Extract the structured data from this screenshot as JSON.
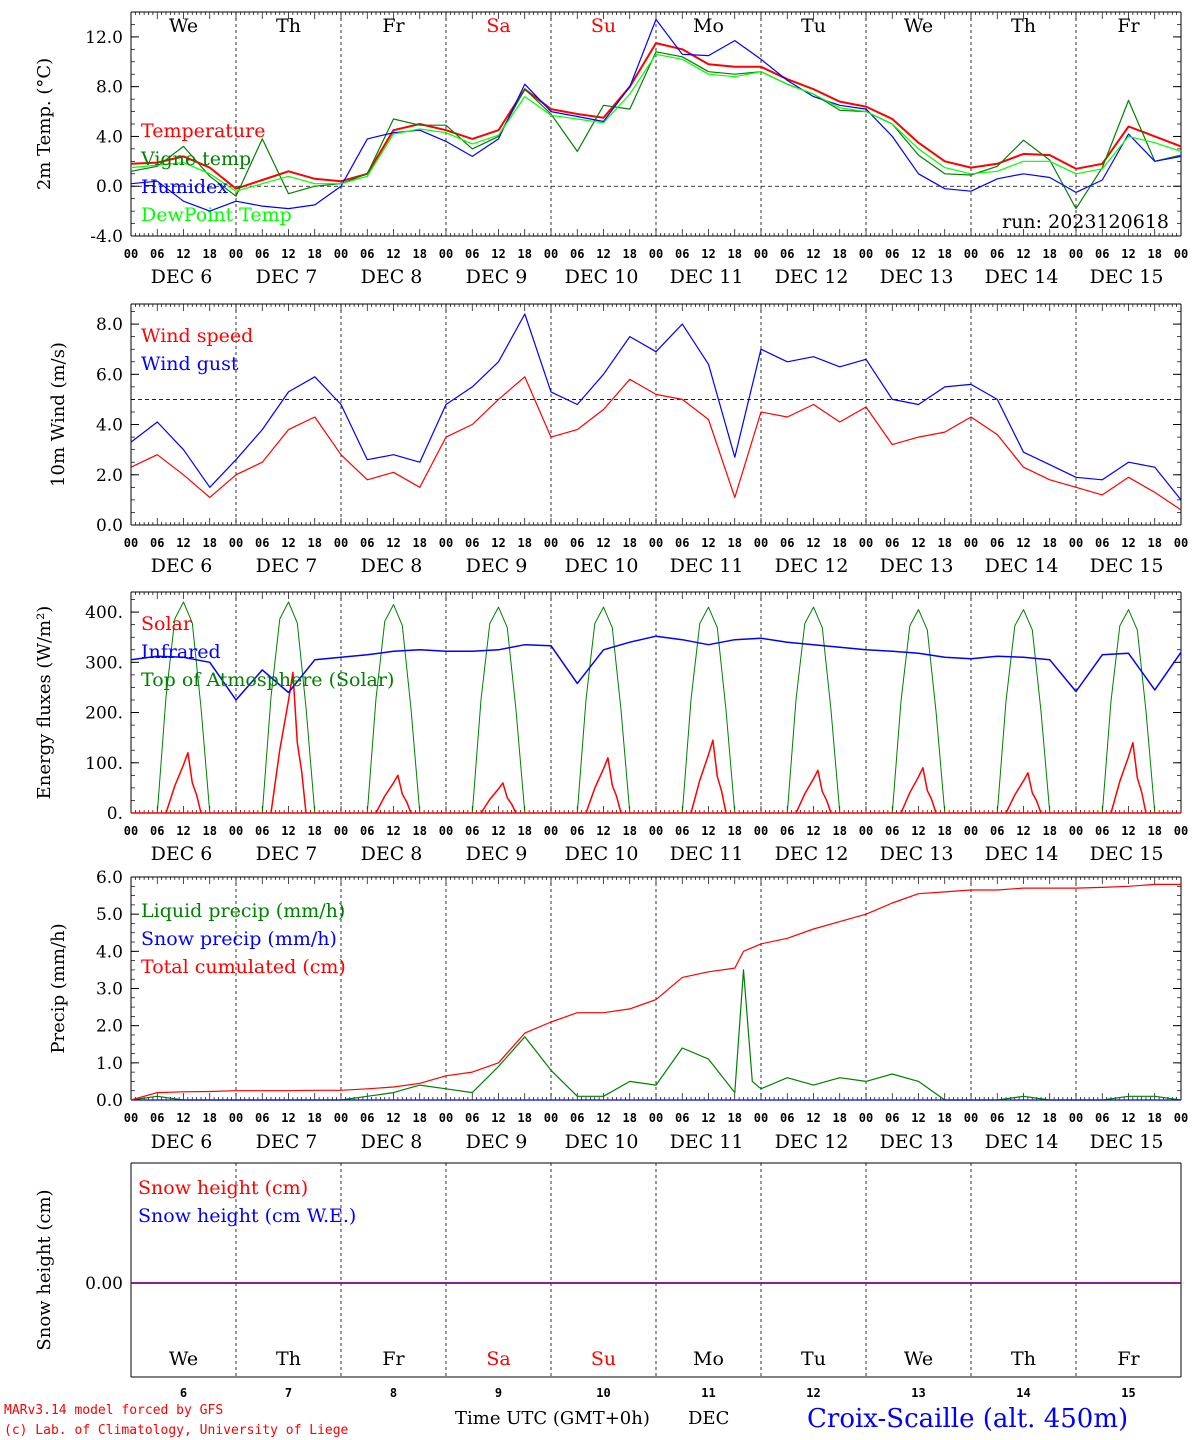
{
  "day_labels": [
    "We",
    "Th",
    "Fr",
    "Sa",
    "Su",
    "Mo",
    "Tu",
    "We",
    "Th",
    "Fr"
  ],
  "weekend_days": [
    "Sa",
    "Su"
  ],
  "date_labels": [
    "DEC  6",
    "DEC  7",
    "DEC  8",
    "DEC  9",
    "DEC 10",
    "DEC 11",
    "DEC 12",
    "DEC 13",
    "DEC 14",
    "DEC 15"
  ],
  "date_numbers": [
    "6",
    "7",
    "8",
    "9",
    "10",
    "11",
    "12",
    "13",
    "14",
    "15"
  ],
  "hour_labels": [
    "00",
    "06",
    "12",
    "18"
  ],
  "x_title": "Time UTC (GMT+0h)",
  "x_month": "DEC",
  "footer_model": "MARv3.14 model forced by GFS",
  "footer_lab": "(c) Lab. of Climatology, University of Liege",
  "location_title": "Croix-Scaille (alt. 450m)",
  "run_label": "run: 2023120618",
  "colors": {
    "red": "#ff0000",
    "green": "#008000",
    "blue": "#0000ff",
    "lime": "#00ff00",
    "purple": "#7f007f"
  },
  "chart_data": [
    {
      "type": "line",
      "ylabel": "2m Temp. (°C)",
      "ylim": [
        -4,
        14
      ],
      "yticks": [
        "-4.0",
        "0.0",
        "4.0",
        "8.0",
        "12.0"
      ],
      "reference_line": 0,
      "x_unit": "hours since DEC 6 00 UTC",
      "series": [
        {
          "name": "Temperature",
          "color": "red",
          "x": [
            0,
            6,
            12,
            18,
            24,
            30,
            36,
            42,
            48,
            54,
            60,
            66,
            72,
            78,
            84,
            90,
            96,
            102,
            108,
            114,
            120,
            126,
            132,
            138,
            144,
            150,
            156,
            162,
            168,
            174,
            180,
            186,
            192,
            198,
            204,
            210,
            216,
            222,
            228,
            234,
            240
          ],
          "y": [
            1.8,
            1.9,
            2.4,
            1.5,
            -0.2,
            0.5,
            1.2,
            0.6,
            0.4,
            1.0,
            4.5,
            5.0,
            4.5,
            3.8,
            4.5,
            7.8,
            6.2,
            5.8,
            5.5,
            8.0,
            11.5,
            11.0,
            9.8,
            9.6,
            9.6,
            8.6,
            7.8,
            6.8,
            6.4,
            5.4,
            3.5,
            2.0,
            1.5,
            1.8,
            2.6,
            2.5,
            1.4,
            1.8,
            4.8,
            4.0,
            3.2
          ]
        },
        {
          "name": "Vigne temp",
          "color": "green",
          "x": [
            0,
            6,
            12,
            18,
            24,
            30,
            36,
            42,
            48,
            54,
            60,
            66,
            72,
            78,
            84,
            90,
            96,
            102,
            108,
            114,
            120,
            126,
            132,
            138,
            144,
            150,
            156,
            162,
            168,
            174,
            180,
            186,
            192,
            198,
            204,
            210,
            216,
            222,
            228,
            234,
            240
          ],
          "y": [
            1.2,
            1.6,
            3.2,
            0.8,
            -0.8,
            3.8,
            -0.6,
            0.0,
            0.2,
            1.0,
            5.4,
            4.9,
            4.9,
            3.0,
            4.0,
            7.8,
            5.8,
            2.8,
            6.5,
            6.2,
            10.8,
            10.4,
            9.2,
            9.0,
            9.2,
            8.2,
            7.4,
            6.1,
            6.0,
            5.0,
            2.5,
            1.0,
            0.9,
            1.6,
            3.7,
            2.1,
            -1.8,
            1.5,
            6.9,
            2.0,
            2.5
          ]
        },
        {
          "name": "Humidex",
          "color": "blue",
          "x": [
            0,
            6,
            12,
            18,
            24,
            30,
            36,
            42,
            48,
            54,
            60,
            66,
            72,
            78,
            84,
            90,
            96,
            102,
            108,
            114,
            120,
            126,
            132,
            138,
            144,
            150,
            156,
            162,
            168,
            174,
            180,
            186,
            192,
            198,
            204,
            210,
            216,
            222,
            228,
            234,
            240
          ],
          "y": [
            0.2,
            0.4,
            -1.2,
            -2.0,
            -1.2,
            -1.6,
            -1.8,
            -1.5,
            0.0,
            3.8,
            4.3,
            4.5,
            3.6,
            2.4,
            3.8,
            8.2,
            6.0,
            5.6,
            5.2,
            8.0,
            13.4,
            10.6,
            10.5,
            11.7,
            10.2,
            8.5,
            7.2,
            6.5,
            6.2,
            4.0,
            1.0,
            -0.2,
            -0.4,
            0.6,
            1.0,
            0.7,
            -0.5,
            0.5,
            4.2,
            2.0,
            2.4
          ]
        },
        {
          "name": "DewPoint Temp",
          "color": "lime",
          "x": [
            0,
            6,
            12,
            18,
            24,
            30,
            36,
            42,
            48,
            54,
            60,
            66,
            72,
            78,
            84,
            90,
            96,
            102,
            108,
            114,
            120,
            126,
            132,
            138,
            144,
            150,
            156,
            162,
            168,
            174,
            180,
            186,
            192,
            198,
            204,
            210,
            216,
            222,
            228,
            234,
            240
          ],
          "y": [
            1.5,
            1.7,
            1.9,
            1.0,
            -0.4,
            0.2,
            0.8,
            0.2,
            0.2,
            0.8,
            4.2,
            4.6,
            4.3,
            3.4,
            4.1,
            7.2,
            5.7,
            5.4,
            5.1,
            7.4,
            10.6,
            10.2,
            9.0,
            8.8,
            9.2,
            8.2,
            7.4,
            6.3,
            6.0,
            5.0,
            3.0,
            1.5,
            1.0,
            1.2,
            2.0,
            2.0,
            1.0,
            1.4,
            4.0,
            3.5,
            2.8
          ]
        }
      ]
    },
    {
      "type": "line",
      "ylabel": "10m Wind (m/s)",
      "ylim": [
        0,
        8.8
      ],
      "yticks": [
        "0.0",
        "2.0",
        "4.0",
        "6.0",
        "8.0"
      ],
      "reference_line": 5,
      "x_unit": "hours since DEC 6 00 UTC",
      "series": [
        {
          "name": "Wind speed",
          "color": "red",
          "x": [
            0,
            6,
            12,
            18,
            24,
            30,
            36,
            42,
            48,
            54,
            60,
            66,
            72,
            78,
            84,
            90,
            96,
            102,
            108,
            114,
            120,
            126,
            132,
            138,
            144,
            150,
            156,
            162,
            168,
            174,
            180,
            186,
            192,
            198,
            204,
            210,
            216,
            222,
            228,
            234,
            240
          ],
          "y": [
            2.3,
            2.8,
            2.0,
            1.1,
            2.0,
            2.5,
            3.8,
            4.3,
            2.8,
            1.8,
            2.1,
            1.5,
            3.5,
            4.0,
            5.0,
            5.9,
            3.5,
            3.8,
            4.6,
            5.8,
            5.2,
            5.0,
            4.2,
            1.1,
            4.5,
            4.3,
            4.8,
            4.1,
            4.7,
            3.2,
            3.5,
            3.7,
            4.3,
            3.6,
            2.3,
            1.8,
            1.5,
            1.2,
            1.9,
            1.3,
            0.6
          ]
        },
        {
          "name": "Wind gust",
          "color": "blue",
          "x": [
            0,
            6,
            12,
            18,
            24,
            30,
            36,
            42,
            48,
            54,
            60,
            66,
            72,
            78,
            84,
            90,
            96,
            102,
            108,
            114,
            120,
            126,
            132,
            138,
            144,
            150,
            156,
            162,
            168,
            174,
            180,
            186,
            192,
            198,
            204,
            210,
            216,
            222,
            228,
            234,
            240
          ],
          "y": [
            3.3,
            4.1,
            3.0,
            1.5,
            2.6,
            3.8,
            5.3,
            5.9,
            4.8,
            2.6,
            2.8,
            2.5,
            4.8,
            5.5,
            6.5,
            8.4,
            5.3,
            4.8,
            6.0,
            7.5,
            6.9,
            8.0,
            6.4,
            2.7,
            7.0,
            6.5,
            6.7,
            6.3,
            6.6,
            5.0,
            4.8,
            5.5,
            5.6,
            5.0,
            2.9,
            2.4,
            1.9,
            1.8,
            2.5,
            2.3,
            1.0
          ]
        }
      ]
    },
    {
      "type": "line",
      "ylabel": "Energy fluxes (W/m²)",
      "ylim": [
        0,
        440
      ],
      "yticks": [
        "0.",
        "100.",
        "200.",
        "300.",
        "400."
      ],
      "x_unit": "hours since DEC 6 00 UTC",
      "daily_solar_peak": [
        120,
        280,
        75,
        60,
        110,
        145,
        85,
        90,
        80,
        140
      ],
      "daily_toa_peak": [
        420,
        420,
        415,
        410,
        410,
        410,
        410,
        405,
        405,
        405
      ],
      "series": [
        {
          "name": "Solar",
          "color": "red"
        },
        {
          "name": "Infrared",
          "color": "blue",
          "x": [
            0,
            6,
            12,
            18,
            24,
            30,
            36,
            42,
            48,
            54,
            60,
            66,
            72,
            78,
            84,
            90,
            96,
            102,
            108,
            114,
            120,
            126,
            132,
            138,
            144,
            150,
            156,
            162,
            168,
            174,
            180,
            186,
            192,
            198,
            204,
            210,
            216,
            222,
            228,
            234,
            240
          ],
          "y": [
            305,
            312,
            310,
            300,
            225,
            285,
            240,
            305,
            310,
            315,
            322,
            325,
            322,
            322,
            325,
            335,
            333,
            258,
            325,
            340,
            352,
            345,
            335,
            345,
            348,
            340,
            335,
            330,
            325,
            322,
            318,
            310,
            307,
            312,
            310,
            305,
            242,
            315,
            318,
            245,
            320
          ]
        },
        {
          "name": "Top of Atmosphere (Solar)",
          "color": "green"
        }
      ]
    },
    {
      "type": "line",
      "ylabel": "Precip (mm/h)",
      "ylim": [
        0,
        6
      ],
      "yticks": [
        "0.0",
        "1.0",
        "2.0",
        "3.0",
        "4.0",
        "5.0",
        "6.0"
      ],
      "x_unit": "hours since DEC 6 00 UTC",
      "series": [
        {
          "name": "Liquid precip (mm/h)",
          "color": "green",
          "x": [
            0,
            6,
            12,
            18,
            24,
            30,
            36,
            42,
            48,
            54,
            60,
            66,
            72,
            78,
            84,
            90,
            96,
            102,
            108,
            114,
            120,
            126,
            132,
            138,
            140,
            142,
            144,
            150,
            156,
            162,
            168,
            174,
            180,
            186,
            192,
            198,
            204,
            210,
            216,
            222,
            228,
            234,
            240
          ],
          "y": [
            0.0,
            0.1,
            0.0,
            0.0,
            0.0,
            0.0,
            0.0,
            0.0,
            0.0,
            0.1,
            0.2,
            0.4,
            0.3,
            0.2,
            0.9,
            1.7,
            0.8,
            0.1,
            0.1,
            0.5,
            0.4,
            1.4,
            1.1,
            0.2,
            3.5,
            0.5,
            0.3,
            0.6,
            0.4,
            0.6,
            0.5,
            0.7,
            0.5,
            0.0,
            0.0,
            0.0,
            0.1,
            0.0,
            0.0,
            0.0,
            0.1,
            0.1,
            0.0
          ]
        },
        {
          "name": "Snow precip (mm/h)",
          "color": "blue",
          "x": [
            0,
            240
          ],
          "y": [
            0,
            0
          ]
        },
        {
          "name": "Total cumulated (cm)",
          "color": "red",
          "x": [
            0,
            6,
            12,
            18,
            24,
            30,
            36,
            42,
            48,
            54,
            60,
            66,
            72,
            78,
            84,
            90,
            96,
            102,
            108,
            114,
            120,
            126,
            132,
            138,
            140,
            144,
            150,
            156,
            162,
            168,
            174,
            180,
            186,
            192,
            198,
            204,
            210,
            216,
            222,
            228,
            234,
            240
          ],
          "y": [
            0.0,
            0.2,
            0.22,
            0.23,
            0.25,
            0.25,
            0.25,
            0.26,
            0.26,
            0.3,
            0.35,
            0.45,
            0.65,
            0.75,
            1.0,
            1.8,
            2.1,
            2.35,
            2.35,
            2.45,
            2.7,
            3.3,
            3.45,
            3.55,
            4.0,
            4.2,
            4.35,
            4.6,
            4.8,
            5.0,
            5.3,
            5.55,
            5.6,
            5.65,
            5.65,
            5.7,
            5.7,
            5.7,
            5.72,
            5.75,
            5.8,
            5.8
          ]
        }
      ]
    },
    {
      "type": "line",
      "ylabel": "Snow height (cm)",
      "yticks": [
        "0.00"
      ],
      "x_unit": "hours since DEC 6 00 UTC",
      "series": [
        {
          "name": "Snow height (cm)",
          "color": "red",
          "x": [
            0,
            240
          ],
          "y": [
            0,
            0
          ]
        },
        {
          "name": "Snow height (cm W.E.)",
          "color": "blue",
          "x": [
            0,
            240
          ],
          "y": [
            0,
            0
          ]
        }
      ]
    }
  ]
}
